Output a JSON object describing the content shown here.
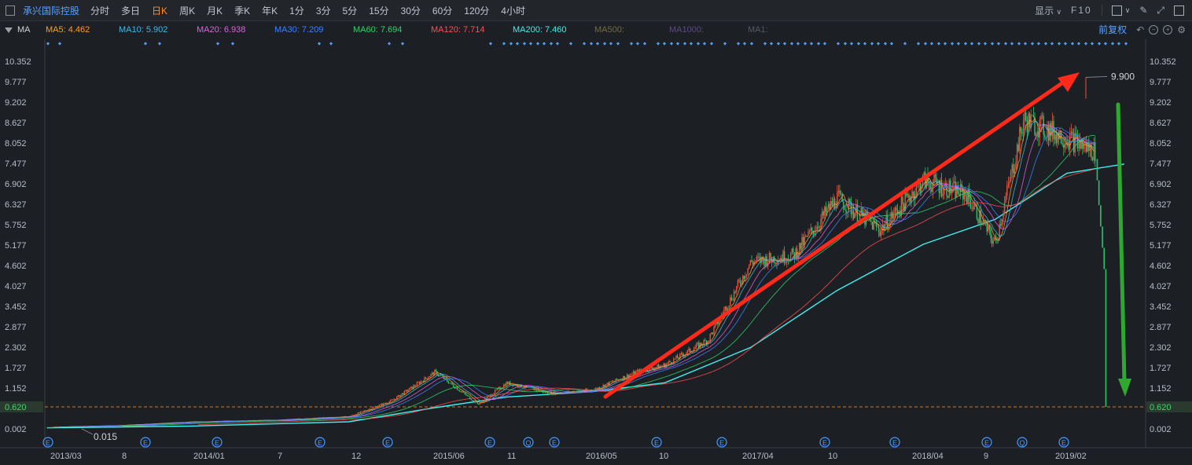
{
  "toolbar": {
    "stock_name": "承兴国际控股",
    "tabs": [
      "分时",
      "多日",
      "日K",
      "周K",
      "月K",
      "季K",
      "年K",
      "1分",
      "3分",
      "5分",
      "15分",
      "30分",
      "60分",
      "120分",
      "4小时"
    ],
    "active_tab": "日K",
    "display_label": "显示",
    "f10_label": "F10"
  },
  "ma_bar": {
    "name": "MA",
    "items": [
      {
        "label": "MA5: 4.462",
        "color": "#ff9a2e"
      },
      {
        "label": "MA10: 5.902",
        "color": "#3fb8e8"
      },
      {
        "label": "MA20: 6.938",
        "color": "#e060e0"
      },
      {
        "label": "MA30: 7.209",
        "color": "#3b82ff"
      },
      {
        "label": "MA60: 7.694",
        "color": "#2fd26a"
      },
      {
        "label": "MA120: 7.714",
        "color": "#ff4f4f"
      },
      {
        "label": "MA200: 7.460",
        "color": "#3ff0f0"
      },
      {
        "label": "MA500:",
        "color": "#7a6a3a"
      },
      {
        "label": "MA1000:",
        "color": "#5c4a80"
      },
      {
        "label": "MA1:",
        "color": "#555a60"
      }
    ],
    "restore_label": "前复权"
  },
  "chart_data": {
    "type": "line",
    "y_ticks": [
      10.352,
      9.777,
      9.202,
      8.627,
      8.052,
      7.477,
      6.902,
      6.327,
      5.752,
      5.177,
      4.602,
      4.027,
      3.452,
      2.877,
      2.302,
      1.727,
      1.152,
      0.62,
      0.002
    ],
    "ylim": [
      0.002,
      10.352
    ],
    "x_labels": [
      "2013/03",
      "8",
      "2014/01",
      "7",
      "12",
      "2015/06",
      "11",
      "2016/05",
      "10",
      "2017/04",
      "10",
      "2018/04",
      "9",
      "2019/02"
    ],
    "annotations": {
      "high": "9.900",
      "low": "0.015",
      "current": "0.620"
    },
    "event_markers": [
      "E",
      "E",
      "E",
      "E",
      "E",
      "E",
      "Q",
      "E",
      "E",
      "E",
      "E",
      "E",
      "E",
      "Q",
      "E"
    ],
    "series": [
      {
        "name": "price",
        "color": "#e8533a",
        "x": [
          "2013/03",
          "2013/08",
          "2014/01",
          "2014/07",
          "2014/12",
          "2015/03",
          "2015/06",
          "2015/09",
          "2015/11",
          "2016/02",
          "2016/05",
          "2016/08",
          "2016/10",
          "2017/01",
          "2017/04",
          "2017/07",
          "2017/10",
          "2018/01",
          "2018/04",
          "2018/07",
          "2018/09",
          "2018/11",
          "2019/02",
          "2019/04",
          "2019/06"
        ],
        "values": [
          0.05,
          0.1,
          0.2,
          0.25,
          0.35,
          0.8,
          1.6,
          0.7,
          1.3,
          1.0,
          1.1,
          1.6,
          1.8,
          2.5,
          4.7,
          4.9,
          6.5,
          5.6,
          7.0,
          6.6,
          5.2,
          8.7,
          8.2,
          7.8,
          0.62
        ]
      },
      {
        "name": "MA200",
        "color": "#3ff0f0",
        "x": [
          "2013/03",
          "2014/01",
          "2014/12",
          "2015/06",
          "2015/11",
          "2016/05",
          "2016/10",
          "2017/04",
          "2017/10",
          "2018/04",
          "2018/09",
          "2019/02",
          "2019/06"
        ],
        "values": [
          0.03,
          0.08,
          0.2,
          0.6,
          0.9,
          1.05,
          1.3,
          2.3,
          3.9,
          5.2,
          5.9,
          7.2,
          7.46
        ]
      }
    ]
  }
}
